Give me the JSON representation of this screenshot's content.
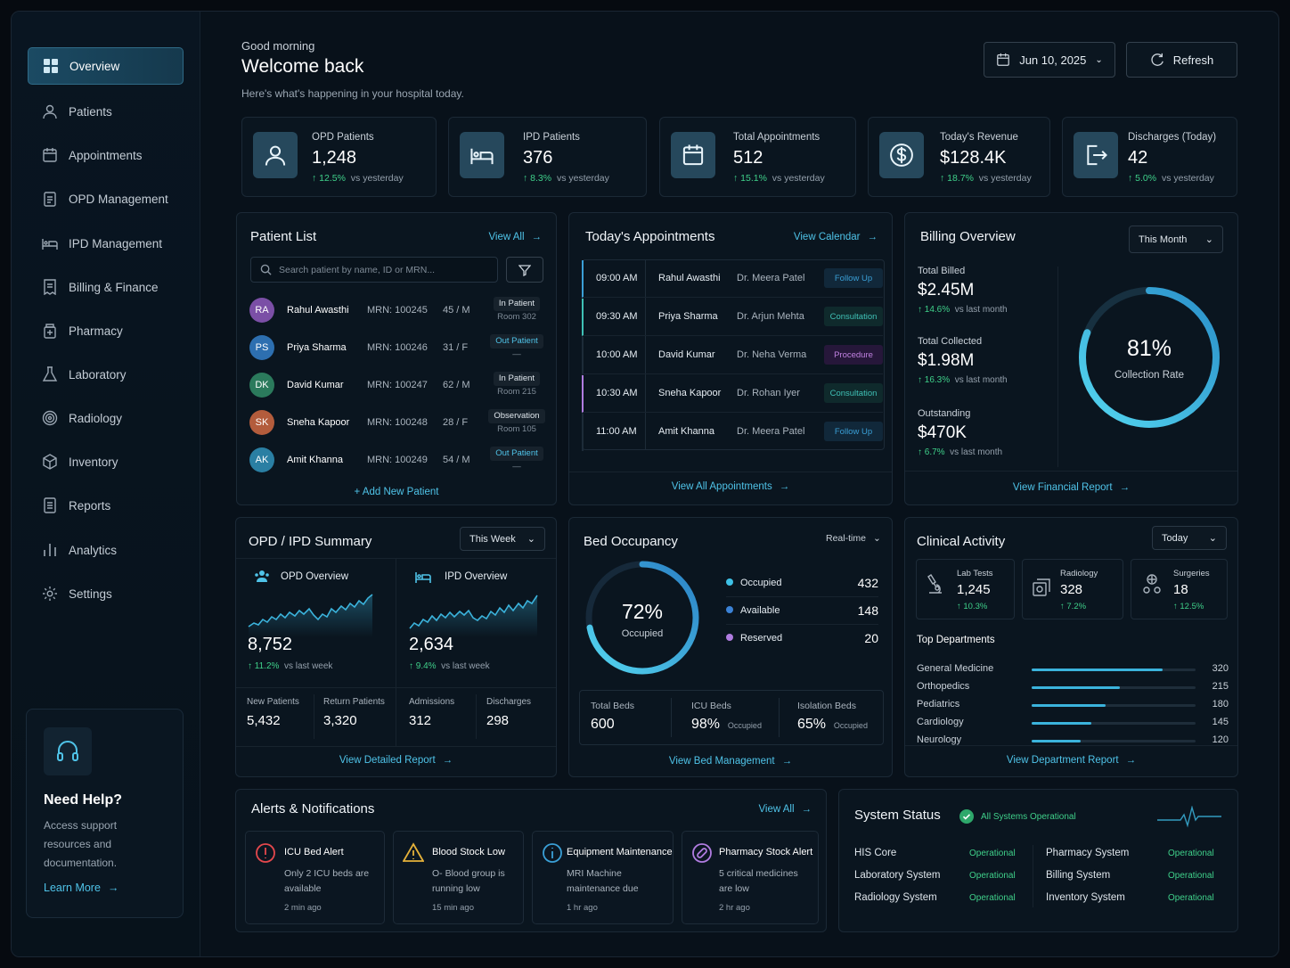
{
  "sidebar": {
    "items": [
      {
        "label": "Overview",
        "icon": "grid-icon"
      },
      {
        "label": "Patients",
        "icon": "user-icon"
      },
      {
        "label": "Appointments",
        "icon": "calendar-icon"
      },
      {
        "label": "OPD Management",
        "icon": "clipboard-icon"
      },
      {
        "label": "IPD Management",
        "icon": "bed-icon"
      },
      {
        "label": "Billing & Finance",
        "icon": "invoice-icon"
      },
      {
        "label": "Pharmacy",
        "icon": "medicine-icon"
      },
      {
        "label": "Laboratory",
        "icon": "flask-icon"
      },
      {
        "label": "Radiology",
        "icon": "radiology-icon"
      },
      {
        "label": "Inventory",
        "icon": "box-icon"
      },
      {
        "label": "Reports",
        "icon": "report-icon"
      },
      {
        "label": "Analytics",
        "icon": "bar-chart-icon"
      },
      {
        "label": "Settings",
        "icon": "gear-icon"
      }
    ],
    "help": {
      "title": "Need Help?",
      "desc": "Access support resources and documentation.",
      "link": "Learn More"
    }
  },
  "header": {
    "greeting": "Good morning",
    "title": "Welcome back",
    "subtitle": "Here's what's happening in your hospital today.",
    "date": "Jun 10, 2025",
    "refresh": "Refresh"
  },
  "stats": [
    {
      "label": "OPD Patients",
      "value": "1,248",
      "change": "12.5%",
      "note": "vs yesterday"
    },
    {
      "label": "IPD Patients",
      "value": "376",
      "change": "8.3%",
      "note": "vs yesterday"
    },
    {
      "label": "Total Appointments",
      "value": "512",
      "change": "15.1%",
      "note": "vs yesterday"
    },
    {
      "label": "Today's Revenue",
      "value": "$128.4K",
      "change": "18.7%",
      "note": "vs yesterday"
    },
    {
      "label": "Discharges (Today)",
      "value": "42",
      "change": "5.0%",
      "note": "vs yesterday"
    }
  ],
  "patients": {
    "title": "Patient List",
    "view_all": "View All",
    "search_placeholder": "Search patient by name, ID or MRN...",
    "rows": [
      {
        "initials": "RA",
        "name": "Rahul Awasthi",
        "mrn": "MRN: 100245",
        "age": "45 / M",
        "type": "In Patient",
        "room": "Room 302",
        "color": "#7b4fa6"
      },
      {
        "initials": "PS",
        "name": "Priya Sharma",
        "mrn": "MRN: 100246",
        "age": "31 / F",
        "type": "Out Patient",
        "room": "—",
        "color": "#2d6fb0"
      },
      {
        "initials": "DK",
        "name": "David Kumar",
        "mrn": "MRN: 100247",
        "age": "62 / M",
        "type": "In Patient",
        "room": "Room 215",
        "color": "#2b7a5c"
      },
      {
        "initials": "SK",
        "name": "Sneha Kapoor",
        "mrn": "MRN: 100248",
        "age": "28 / F",
        "type": "Observation",
        "room": "Room 105",
        "color": "#b35c3c"
      },
      {
        "initials": "AK",
        "name": "Amit Khanna",
        "mrn": "MRN: 100249",
        "age": "54 / M",
        "type": "Out Patient",
        "room": "—",
        "color": "#2a7fa3"
      }
    ],
    "add": "+ Add New Patient"
  },
  "appointments": {
    "title": "Today's Appointments",
    "view_calendar": "View Calendar",
    "rows": [
      {
        "time": "09:00 AM",
        "name": "Rahul Awasthi",
        "doctor": "Dr. Meera Patel",
        "type": "Follow Up",
        "color": "#3a9fd6",
        "bg": "#11283a"
      },
      {
        "time": "09:30 AM",
        "name": "Priya Sharma",
        "doctor": "Dr. Arjun Mehta",
        "type": "Consultation",
        "color": "#3fc0b5",
        "bg": "#0f2a2c"
      },
      {
        "time": "10:00 AM",
        "name": "David Kumar",
        "doctor": "Dr. Neha Verma",
        "type": "Procedure",
        "color": "#c081e0",
        "bg": "#26173a"
      },
      {
        "time": "10:30 AM",
        "name": "Sneha Kapoor",
        "doctor": "Dr. Rohan Iyer",
        "type": "Consultation",
        "color": "#3fc0b5",
        "bg": "#0f2a2c"
      },
      {
        "time": "11:00 AM",
        "name": "Amit Khanna",
        "doctor": "Dr. Meera Patel",
        "type": "Follow Up",
        "color": "#3a9fd6",
        "bg": "#11283a"
      }
    ],
    "view_all": "View All Appointments"
  },
  "billing": {
    "title": "Billing Overview",
    "period": "This Month",
    "items": [
      {
        "label": "Total Billed",
        "value": "$2.45M",
        "change": "14.6%",
        "note": "vs last month"
      },
      {
        "label": "Total Collected",
        "value": "$1.98M",
        "change": "16.3%",
        "note": "vs last month"
      },
      {
        "label": "Outstanding",
        "value": "$470K",
        "change": "6.7%",
        "note": "vs last month"
      }
    ],
    "rate": "81%",
    "rate_value": 0.81,
    "rate_label": "Collection Rate",
    "link": "View Financial Report"
  },
  "summary": {
    "title": "OPD / IPD Summary",
    "period": "This Week",
    "opd": {
      "label": "OPD Overview",
      "value": "8,752",
      "change": "11.2%",
      "note": "vs last week"
    },
    "ipd": {
      "label": "IPD Overview",
      "value": "2,634",
      "change": "9.4%",
      "note": "vs last week"
    },
    "stats": [
      {
        "label": "New Patients",
        "value": "5,432"
      },
      {
        "label": "Return Patients",
        "value": "3,320"
      },
      {
        "label": "Admissions",
        "value": "312"
      },
      {
        "label": "Discharges",
        "value": "298"
      }
    ],
    "link": "View Detailed Report"
  },
  "beds": {
    "title": "Bed Occupancy",
    "mode": "Real-time",
    "pct": "72%",
    "pct_value": 0.72,
    "pct_label": "Occupied",
    "legend": [
      {
        "label": "Occupied",
        "value": "432",
        "color": "#3ec1e6"
      },
      {
        "label": "Available",
        "value": "148",
        "color": "#3b82d6"
      },
      {
        "label": "Reserved",
        "value": "20",
        "color": "#b07ce0"
      }
    ],
    "totals": [
      {
        "label": "Total Beds",
        "value": "600",
        "note": ""
      },
      {
        "label": "ICU Beds",
        "value": "98%",
        "note": "Occupied"
      },
      {
        "label": "Isolation Beds",
        "value": "65%",
        "note": "Occupied"
      }
    ],
    "link": "View Bed Management"
  },
  "clinical": {
    "title": "Clinical Activity",
    "period": "Today",
    "tiles": [
      {
        "label": "Lab Tests",
        "value": "1,245",
        "change": "10.3%"
      },
      {
        "label": "Radiology",
        "value": "328",
        "change": "7.2%"
      },
      {
        "label": "Surgeries",
        "value": "18",
        "change": "12.5%"
      }
    ],
    "dept_title": "Top Departments",
    "departments": [
      {
        "name": "General Medicine",
        "value": 320
      },
      {
        "name": "Orthopedics",
        "value": 215
      },
      {
        "name": "Pediatrics",
        "value": 180
      },
      {
        "name": "Cardiology",
        "value": 145
      },
      {
        "name": "Neurology",
        "value": 120
      }
    ],
    "dept_max": 400,
    "link": "View Department Report"
  },
  "alerts": {
    "title": "Alerts & Notifications",
    "view_all": "View All",
    "items": [
      {
        "title": "ICU Bed Alert",
        "desc": "Only 2 ICU beds are available",
        "time": "2 min ago",
        "icon": "alert-circle-icon",
        "color": "#e5484d"
      },
      {
        "title": "Blood Stock Low",
        "desc": "O- Blood group is running low",
        "time": "15 min ago",
        "icon": "warning-icon",
        "color": "#e5b13a"
      },
      {
        "title": "Equipment Maintenance",
        "desc": "MRI Machine maintenance due",
        "time": "1 hr ago",
        "icon": "info-icon",
        "color": "#3a9fd6"
      },
      {
        "title": "Pharmacy Stock Alert",
        "desc": "5 critical medicines are low",
        "time": "2 hr ago",
        "icon": "pill-icon",
        "color": "#b07ce0"
      }
    ]
  },
  "system": {
    "title": "System Status",
    "badge": "All Systems Operational",
    "items": [
      {
        "name": "HIS Core",
        "status": "Operational"
      },
      {
        "name": "Laboratory System",
        "status": "Operational"
      },
      {
        "name": "Radiology System",
        "status": "Operational"
      },
      {
        "name": "Pharmacy System",
        "status": "Operational"
      },
      {
        "name": "Billing System",
        "status": "Operational"
      },
      {
        "name": "Inventory System",
        "status": "Operational"
      }
    ]
  }
}
